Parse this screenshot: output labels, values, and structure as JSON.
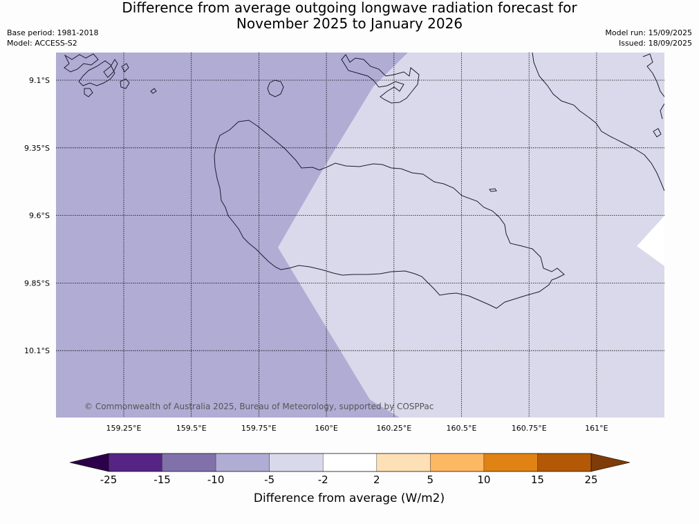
{
  "header": {
    "title_line1": "Difference from average outgoing longwave radiation forecast for",
    "title_line2": "November 2025 to January 2026",
    "base_period": "Base period: 1981-2018",
    "model": "Model: ACCESS-S2",
    "model_run": "Model run: 15/09/2025",
    "issued": "Issued: 18/09/2025"
  },
  "map": {
    "lon_ticks": [
      "159.25°E",
      "159.5°E",
      "159.75°E",
      "160°E",
      "160.25°E",
      "160.5°E",
      "160.75°E",
      "161°E"
    ],
    "lat_ticks": [
      "9.1°S",
      "9.35°S",
      "9.6°S",
      "9.85°S",
      "10.1°S"
    ],
    "copyright": "© Commonwealth of Australia 2025, Bureau of Meteorology, supported by COSPPac",
    "colors": {
      "class_minus10_to_minus5": "#b0acd4",
      "class_minus5_to_minus2": "#d9d9eb",
      "class_minus2_to_2": "#ffffff",
      "coastline": "#1a1a2e",
      "gridline": "#000000"
    }
  },
  "colorbar": {
    "title": "Difference from average (W/m2)",
    "labels": [
      "-25",
      "-15",
      "-10",
      "-5",
      "-2",
      "2",
      "5",
      "10",
      "15",
      "25"
    ],
    "colors": [
      "#552485",
      "#8171ab",
      "#b0acd4",
      "#d9d9eb",
      "#ffffff",
      "#fee0b6",
      "#fdb863",
      "#e08214",
      "#b35806"
    ],
    "under_color": "#2d004b",
    "over_color": "#7f3b08"
  }
}
